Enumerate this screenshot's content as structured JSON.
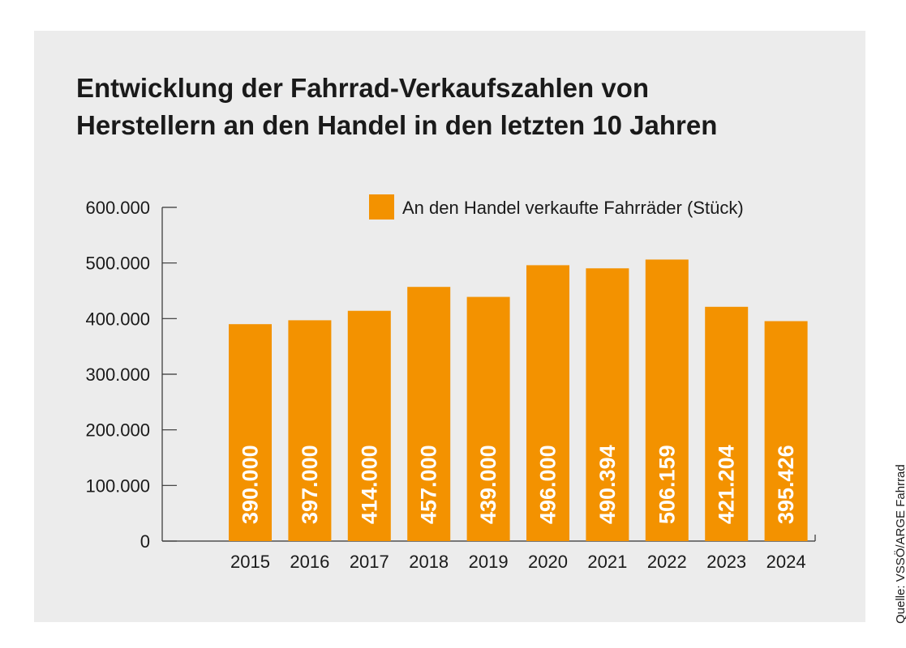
{
  "title_lines": [
    "Entwicklung der Fahrrad-Verkaufszahlen von",
    "Herstellern an den Handel in den letzten 10 Jahren"
  ],
  "source": "Quelle: VSSÖ/ARGE Fahrrad",
  "colors": {
    "bar": "#f39200",
    "panel": "#ececec",
    "axis": "#333333",
    "text": "#1a1a1a",
    "bar_label": "#ffffff"
  },
  "chart_data": {
    "type": "bar",
    "categories": [
      "2015",
      "2016",
      "2017",
      "2018",
      "2019",
      "2020",
      "2021",
      "2022",
      "2023",
      "2024"
    ],
    "series": [
      {
        "name": "An den Handel verkaufte Fahrräder (Stück)",
        "values": [
          390000,
          397000,
          414000,
          457000,
          439000,
          496000,
          490394,
          506159,
          421204,
          395426
        ],
        "value_labels": [
          "390.000",
          "397.000",
          "414.000",
          "457.000",
          "439.000",
          "496.000",
          "490.394",
          "506.159",
          "421.204",
          "395.426"
        ]
      }
    ],
    "yticks": [
      0,
      100000,
      200000,
      300000,
      400000,
      500000,
      600000
    ],
    "ytick_labels": [
      "0",
      "100.000",
      "200.000",
      "300.000",
      "400.000",
      "500.000",
      "600.000"
    ],
    "ylim": [
      0,
      600000
    ],
    "legend_position": "top-right",
    "grid": false
  }
}
